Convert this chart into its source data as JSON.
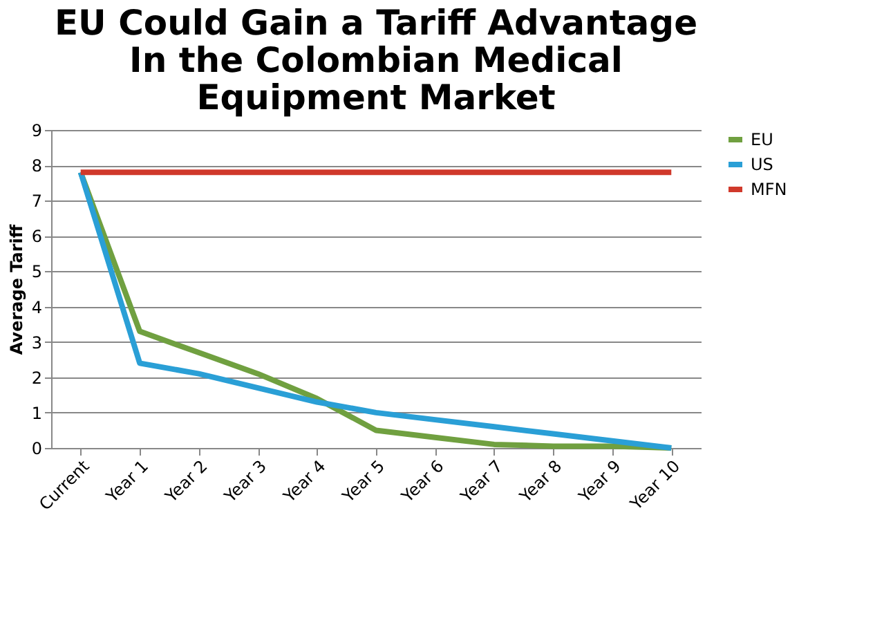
{
  "chart_data": {
    "type": "line",
    "title": [
      "EU Could Gain a Tariff Advantage",
      "In the Colombian Medical",
      "Equipment Market"
    ],
    "ylabel": "Average Tariff",
    "categories": [
      "Current",
      "Year 1",
      "Year 2",
      "Year 3",
      "Year 4",
      "Year 5",
      "Year 6",
      "Year 7",
      "Year 8",
      "Year 9",
      "Year 10"
    ],
    "series": [
      {
        "name": "EU",
        "color": "#70a040",
        "values": [
          7.8,
          3.3,
          2.7,
          2.1,
          1.4,
          0.5,
          0.3,
          0.1,
          0.05,
          0.05,
          0
        ]
      },
      {
        "name": "US",
        "color": "#2a9fd6",
        "values": [
          7.8,
          2.4,
          2.1,
          1.7,
          1.3,
          1.0,
          0.8,
          0.6,
          0.4,
          0.2,
          0
        ]
      },
      {
        "name": "MFN",
        "color": "#d0392b",
        "values": [
          7.8,
          7.8,
          7.8,
          7.8,
          7.8,
          7.8,
          7.8,
          7.8,
          7.8,
          7.8,
          7.8
        ]
      }
    ],
    "ylim": [
      0,
      9
    ],
    "yticks": [
      0,
      1,
      2,
      3,
      4,
      5,
      6,
      7,
      8,
      9
    ],
    "grid": "y",
    "legend": "right",
    "marker": "none",
    "line_style": "solid"
  }
}
